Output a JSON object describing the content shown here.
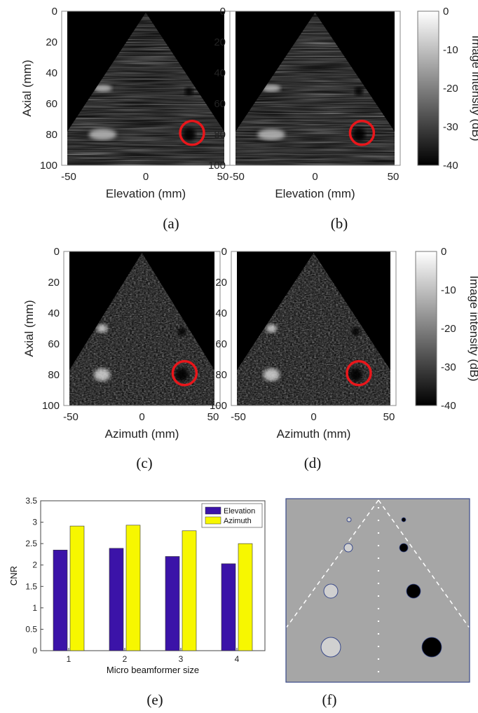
{
  "panels": [
    {
      "caption": "(a)",
      "xlabel": "Elevation (mm)",
      "ylabel": "Axial (mm)",
      "xticks": [
        "-50",
        "0",
        "50"
      ],
      "yticks": [
        "0",
        "20",
        "40",
        "60",
        "80",
        "100"
      ],
      "mode": "elevation"
    },
    {
      "caption": "(b)",
      "xlabel": "Elevation (mm)",
      "ylabel": "",
      "xticks": [
        "-50",
        "0",
        "50"
      ],
      "yticks": [
        "0",
        "20",
        "40",
        "60",
        "80",
        "100"
      ],
      "mode": "elevation"
    },
    {
      "caption": "(c)",
      "xlabel": "Azimuth (mm)",
      "ylabel": "Axial (mm)",
      "xticks": [
        "-50",
        "0",
        "50"
      ],
      "yticks": [
        "0",
        "20",
        "40",
        "60",
        "80",
        "100"
      ],
      "mode": "azimuth"
    },
    {
      "caption": "(d)",
      "xlabel": "Azimuth (mm)",
      "ylabel": "",
      "xticks": [
        "-50",
        "0",
        "50"
      ],
      "yticks": [
        "0",
        "20",
        "40",
        "60",
        "80",
        "100"
      ],
      "mode": "azimuth"
    }
  ],
  "colorbars": [
    {
      "label": "Image intensity (dB)",
      "ticks": [
        "0",
        "-10",
        "-20",
        "-30",
        "-40"
      ],
      "range": [
        -40,
        0
      ]
    },
    {
      "label": "Image intensity (dB)",
      "ticks": [
        "0",
        "-10",
        "-20",
        "-30",
        "-40"
      ],
      "range": [
        -40,
        0
      ]
    }
  ],
  "chart_data": {
    "type": "bar",
    "caption": "(e)",
    "categories": [
      "1",
      "2",
      "3",
      "4"
    ],
    "series": [
      {
        "name": "Elevation",
        "color": "#3b13a8",
        "values": [
          2.35,
          2.39,
          2.2,
          2.03
        ]
      },
      {
        "name": "Azimuth",
        "color": "#f7f700",
        "values": [
          2.91,
          2.93,
          2.8,
          2.5
        ]
      }
    ],
    "xlabel": "Micro beamformer size",
    "ylabel": "CNR",
    "ylim": [
      0,
      3.5
    ],
    "yticks": [
      "0",
      "0.5",
      "1",
      "1.5",
      "2",
      "2.5",
      "3",
      "3.5"
    ],
    "legend": "top-right",
    "grid": false
  },
  "phantom": {
    "caption": "(f)",
    "background": "#a6a6a6",
    "bright_cyst_color": "#d0d0d0",
    "dark_cyst_color": "#000000",
    "outline_color": "#3a4a8a"
  },
  "marker_color": "#e8161b"
}
